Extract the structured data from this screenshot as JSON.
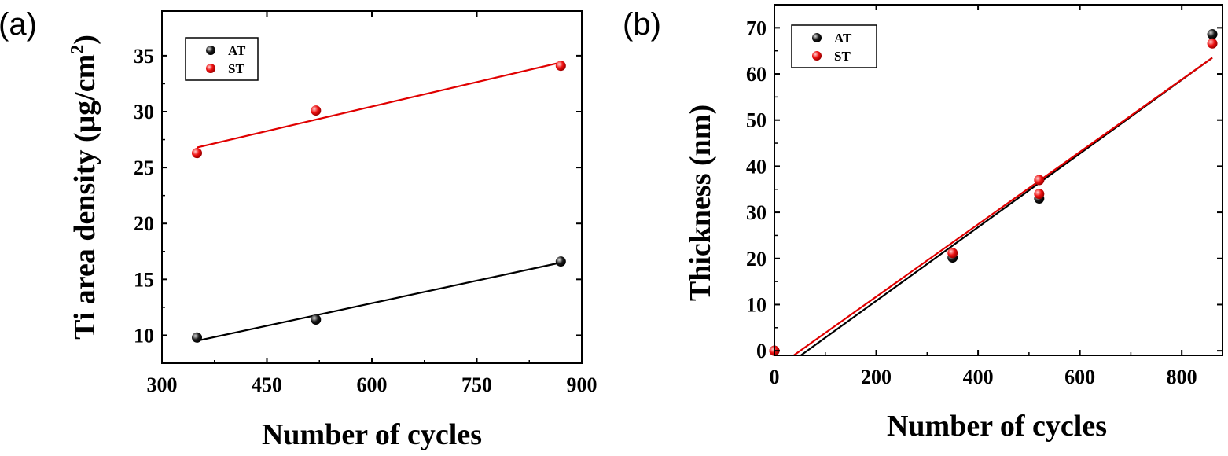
{
  "chart_data": [
    {
      "panel_label": "(a)",
      "type": "scatter",
      "xlabel": "Number of cycles",
      "ylabel_main": "Ti area density (μg/cm",
      "ylabel_sup": "2",
      "ylabel_close": ")",
      "xlim": [
        300,
        900
      ],
      "ylim": [
        7.5,
        39
      ],
      "xticks": [
        300,
        450,
        600,
        750,
        900
      ],
      "yticks": [
        10,
        15,
        20,
        25,
        30,
        35
      ],
      "legend_position": "top-left",
      "grid": false,
      "series": [
        {
          "name": "AT",
          "color": "#000000",
          "points": [
            [
              350,
              9.8
            ],
            [
              520,
              11.4
            ],
            [
              870,
              16.6
            ]
          ],
          "fit": [
            [
              350,
              9.5
            ],
            [
              870,
              16.5
            ]
          ]
        },
        {
          "name": "ST",
          "color": "#e00000",
          "points": [
            [
              350,
              26.3
            ],
            [
              520,
              30.1
            ],
            [
              870,
              34.1
            ]
          ],
          "fit": [
            [
              350,
              26.8
            ],
            [
              870,
              34.4
            ]
          ]
        }
      ]
    },
    {
      "panel_label": "(b)",
      "type": "scatter",
      "xlabel": "Number of cycles",
      "ylabel_main": "Thickness (nm)",
      "ylabel_sup": "",
      "ylabel_close": "",
      "xlim": [
        0,
        880
      ],
      "ylim": [
        -1,
        75
      ],
      "xticks": [
        0,
        200,
        400,
        600,
        800
      ],
      "yticks": [
        0,
        10,
        20,
        30,
        40,
        50,
        60,
        70
      ],
      "legend_position": "top-left",
      "grid": false,
      "series": [
        {
          "name": "AT",
          "color": "#000000",
          "points": [
            [
              0,
              0
            ],
            [
              350,
              20.2
            ],
            [
              520,
              33.0
            ],
            [
              860,
              68.6
            ]
          ],
          "fit": [
            [
              52,
              -1
            ],
            [
              860,
              63.5
            ]
          ]
        },
        {
          "name": "ST",
          "color": "#e00000",
          "points": [
            [
              0,
              0
            ],
            [
              350,
              21.2
            ],
            [
              520,
              34.0
            ],
            [
              520,
              37.0
            ],
            [
              860,
              66.6
            ]
          ],
          "fit": [
            [
              38,
              -1
            ],
            [
              860,
              63.5
            ]
          ]
        }
      ]
    }
  ]
}
